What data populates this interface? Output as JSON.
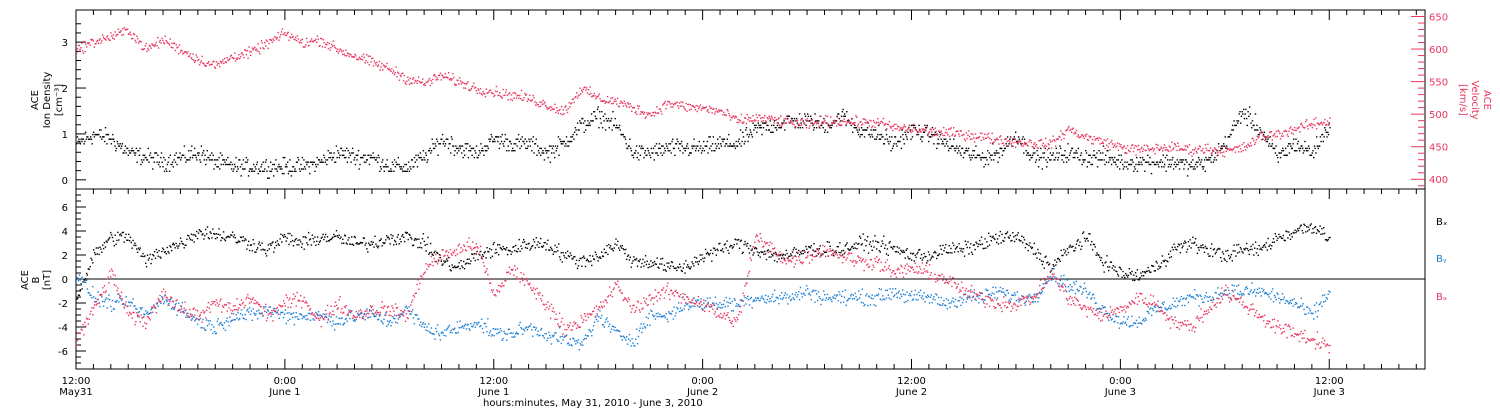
{
  "colors": {
    "velocity": "#e8365e",
    "density": "#000000",
    "bx": "#000000",
    "by": "#1a7fd4",
    "bz": "#e8365e"
  },
  "figure": {
    "x_axis_title": "hours:minutes, May 31, 2010 - June  3, 2010",
    "x_ticks": [
      {
        "hour": 0,
        "time": "12:00",
        "date": "May31"
      },
      {
        "hour": 12,
        "time": "0:00",
        "date": "June 1"
      },
      {
        "hour": 24,
        "time": "12:00",
        "date": "June 1"
      },
      {
        "hour": 36,
        "time": "0:00",
        "date": "June 2"
      },
      {
        "hour": 48,
        "time": "12:00",
        "date": "June 2"
      },
      {
        "hour": 60,
        "time": "0:00",
        "date": "June 3"
      },
      {
        "hour": 72,
        "time": "12:00",
        "date": "June 3"
      }
    ]
  },
  "chart_data": [
    {
      "type": "scatter",
      "title": "",
      "xlabel": "hours:minutes, May 31, 2010 - June  3, 2010",
      "xlim": [
        0,
        77.5
      ],
      "left_axis": {
        "label_lines": [
          "ACE",
          "Ion Density",
          "[cm⁻³]"
        ],
        "ylim": [
          -0.2,
          3.7
        ],
        "ticks": [
          0,
          1,
          2,
          3
        ]
      },
      "right_axis": {
        "label_lines": [
          "ACE",
          "Velocity",
          "[km/s]"
        ],
        "ylim": [
          385,
          660
        ],
        "ticks": [
          400,
          450,
          500,
          550,
          600,
          650
        ]
      },
      "series": [
        {
          "key": "velocity",
          "axis": "right",
          "anchors_x": [
            0,
            1,
            2,
            3,
            4,
            5,
            6,
            7,
            8,
            9,
            10,
            11,
            12,
            13,
            14,
            15,
            16,
            17,
            18,
            19,
            20,
            21,
            22,
            23,
            24,
            25,
            26,
            27,
            28,
            29,
            30,
            31,
            32,
            33,
            34,
            35,
            36,
            37,
            38,
            39,
            40,
            41,
            42,
            43,
            44,
            45,
            46,
            47,
            48,
            49,
            50,
            51,
            52,
            53,
            54,
            55,
            56,
            57,
            58,
            59,
            60,
            61,
            62,
            63,
            64,
            65,
            66,
            67,
            68,
            69,
            70,
            71,
            72
          ],
          "anchors_y": [
            600,
            612,
            620,
            630,
            600,
            615,
            600,
            585,
            575,
            590,
            595,
            610,
            625,
            610,
            615,
            600,
            590,
            580,
            570,
            555,
            548,
            560,
            550,
            540,
            535,
            530,
            525,
            515,
            505,
            540,
            525,
            520,
            510,
            500,
            518,
            512,
            510,
            505,
            490,
            495,
            492,
            488,
            485,
            490,
            490,
            488,
            488,
            480,
            478,
            474,
            472,
            470,
            466,
            462,
            458,
            456,
            455,
            478,
            465,
            458,
            450,
            446,
            448,
            450,
            446,
            448,
            444,
            448,
            466,
            470,
            478,
            485,
            490
          ]
        },
        {
          "key": "density",
          "axis": "left",
          "anchors_x": [
            0,
            1,
            2,
            3,
            4,
            5,
            6,
            7,
            8,
            9,
            10,
            11,
            12,
            13,
            14,
            15,
            16,
            17,
            18,
            19,
            20,
            21,
            22,
            23,
            24,
            25,
            26,
            27,
            28,
            29,
            30,
            31,
            32,
            33,
            34,
            35,
            36,
            37,
            38,
            39,
            40,
            41,
            42,
            43,
            44,
            45,
            46,
            47,
            48,
            49,
            50,
            51,
            52,
            53,
            54,
            55,
            56,
            57,
            58,
            59,
            60,
            61,
            62,
            63,
            64,
            65,
            66,
            67,
            68,
            69,
            70,
            71,
            72
          ],
          "anchors_y": [
            0.8,
            1.0,
            0.9,
            0.6,
            0.5,
            0.4,
            0.5,
            0.6,
            0.4,
            0.3,
            0.3,
            0.3,
            0.3,
            0.3,
            0.4,
            0.6,
            0.5,
            0.5,
            0.3,
            0.3,
            0.5,
            0.9,
            0.7,
            0.6,
            0.9,
            0.8,
            0.8,
            0.6,
            0.8,
            1.2,
            1.4,
            1.2,
            0.6,
            0.6,
            0.7,
            0.7,
            0.7,
            0.8,
            0.8,
            1.1,
            1.2,
            1.3,
            1.3,
            1.2,
            1.4,
            1.1,
            1.0,
            0.8,
            1.1,
            1.0,
            0.8,
            0.6,
            0.5,
            0.6,
            1.0,
            0.5,
            0.5,
            0.6,
            0.5,
            0.5,
            0.4,
            0.4,
            0.4,
            0.4,
            0.3,
            0.4,
            0.8,
            1.5,
            1.1,
            0.5,
            0.8,
            0.6,
            1.2
          ]
        }
      ]
    },
    {
      "type": "scatter",
      "title": "",
      "xlabel": "hours:minutes, May 31, 2010 - June  3, 2010",
      "xlim": [
        0,
        77.5
      ],
      "left_axis": {
        "label_lines": [
          "ACE",
          "B",
          "[nT]"
        ],
        "ylim": [
          -7.5,
          7.5
        ],
        "ticks": [
          -6,
          -4,
          -2,
          0,
          2,
          4,
          6
        ]
      },
      "legend": [
        "Bₓ",
        "Bᵧ",
        "Bₔ"
      ],
      "series": [
        {
          "key": "bx",
          "name": "Bx",
          "anchors_x": [
            0,
            1,
            2,
            3,
            4,
            5,
            6,
            7,
            8,
            9,
            10,
            11,
            12,
            13,
            14,
            15,
            16,
            17,
            18,
            19,
            20,
            21,
            22,
            23,
            24,
            25,
            26,
            27,
            28,
            29,
            30,
            31,
            32,
            33,
            34,
            35,
            36,
            37,
            38,
            39,
            40,
            41,
            42,
            43,
            44,
            45,
            46,
            47,
            48,
            49,
            50,
            51,
            52,
            53,
            54,
            55,
            56,
            57,
            58,
            59,
            60,
            61,
            62,
            63,
            64,
            65,
            66,
            67,
            68,
            69,
            70,
            71,
            72
          ],
          "anchors_y": [
            -1.5,
            2.0,
            3.5,
            3.5,
            1.5,
            2.5,
            3.0,
            4.0,
            3.8,
            3.5,
            3.0,
            2.5,
            3.5,
            3.0,
            3.5,
            3.5,
            3.0,
            3.0,
            3.5,
            3.5,
            3.0,
            1.5,
            1.0,
            2.0,
            2.5,
            2.5,
            3.0,
            3.0,
            2.0,
            1.5,
            2.0,
            3.0,
            1.5,
            1.5,
            1.0,
            1.0,
            2.0,
            2.5,
            3.0,
            2.5,
            2.0,
            2.0,
            2.5,
            2.5,
            2.5,
            3.0,
            3.0,
            2.5,
            2.0,
            2.0,
            2.5,
            2.5,
            3.0,
            3.5,
            3.5,
            2.5,
            1.0,
            2.5,
            3.5,
            1.5,
            0.5,
            0.3,
            1.0,
            2.5,
            3.0,
            2.5,
            2.0,
            2.5,
            2.5,
            3.5,
            4.0,
            4.5,
            3.5
          ]
        },
        {
          "key": "by",
          "name": "By",
          "anchors_x": [
            0,
            1,
            2,
            3,
            4,
            5,
            6,
            7,
            8,
            9,
            10,
            11,
            12,
            13,
            14,
            15,
            16,
            17,
            18,
            19,
            20,
            21,
            22,
            23,
            24,
            25,
            26,
            27,
            28,
            29,
            30,
            31,
            32,
            33,
            34,
            35,
            36,
            37,
            38,
            39,
            40,
            41,
            42,
            43,
            44,
            45,
            46,
            47,
            48,
            49,
            50,
            51,
            52,
            53,
            54,
            55,
            56,
            57,
            58,
            59,
            60,
            61,
            62,
            63,
            64,
            65,
            66,
            67,
            68,
            69,
            70,
            71,
            72
          ],
          "anchors_y": [
            0.5,
            -1.5,
            -2.0,
            -2.0,
            -3.0,
            -1.5,
            -2.5,
            -3.5,
            -4.0,
            -3.0,
            -3.0,
            -2.5,
            -3.0,
            -3.0,
            -3.0,
            -3.5,
            -3.0,
            -3.0,
            -3.5,
            -2.5,
            -4.0,
            -4.5,
            -4.0,
            -3.5,
            -4.5,
            -4.5,
            -4.0,
            -4.5,
            -5.0,
            -5.5,
            -3.0,
            -4.5,
            -5.0,
            -3.0,
            -3.0,
            -2.0,
            -2.0,
            -2.0,
            -2.0,
            -1.5,
            -1.5,
            -1.5,
            -1.0,
            -1.5,
            -1.5,
            -1.5,
            -1.5,
            -1.0,
            -1.5,
            -1.5,
            -2.0,
            -1.5,
            -1.5,
            -1.0,
            -1.5,
            -1.5,
            0.5,
            -0.5,
            -1.0,
            -2.5,
            -3.5,
            -3.5,
            -2.5,
            -2.0,
            -1.5,
            -1.5,
            -1.0,
            -1.0,
            -1.0,
            -1.5,
            -2.0,
            -3.0,
            -1.0
          ]
        },
        {
          "key": "bz",
          "name": "Bz",
          "anchors_x": [
            0,
            1,
            2,
            3,
            4,
            5,
            6,
            7,
            8,
            9,
            10,
            11,
            12,
            13,
            14,
            15,
            16,
            17,
            18,
            19,
            20,
            21,
            22,
            23,
            24,
            25,
            26,
            27,
            28,
            29,
            30,
            31,
            32,
            33,
            34,
            35,
            36,
            37,
            38,
            39,
            40,
            41,
            42,
            43,
            44,
            45,
            46,
            47,
            48,
            49,
            50,
            51,
            52,
            53,
            54,
            55,
            56,
            57,
            58,
            59,
            60,
            61,
            62,
            63,
            64,
            65,
            66,
            67,
            68,
            69,
            70,
            71,
            72
          ],
          "anchors_y": [
            -5.0,
            -2.5,
            0.5,
            -3.0,
            -3.5,
            -1.0,
            -2.5,
            -3.0,
            -2.0,
            -2.5,
            -1.5,
            -3.0,
            -2.0,
            -1.5,
            -3.5,
            -2.0,
            -3.0,
            -2.5,
            -2.5,
            -3.0,
            1.0,
            2.0,
            2.5,
            3.0,
            -1.5,
            1.0,
            -0.5,
            -2.0,
            -4.0,
            -3.5,
            -2.5,
            -0.5,
            -2.5,
            -1.5,
            -1.0,
            -1.5,
            -2.0,
            -3.0,
            -3.5,
            3.5,
            2.5,
            1.5,
            2.0,
            2.5,
            2.0,
            1.5,
            1.5,
            0.5,
            1.0,
            0.5,
            0.0,
            -1.0,
            -1.5,
            -2.0,
            -2.0,
            -1.5,
            0.5,
            -1.5,
            -2.5,
            -3.0,
            -2.5,
            -1.5,
            -2.0,
            -3.5,
            -4.0,
            -2.5,
            -1.0,
            -2.0,
            -3.0,
            -4.0,
            -4.5,
            -5.0,
            -5.5
          ]
        }
      ]
    }
  ]
}
